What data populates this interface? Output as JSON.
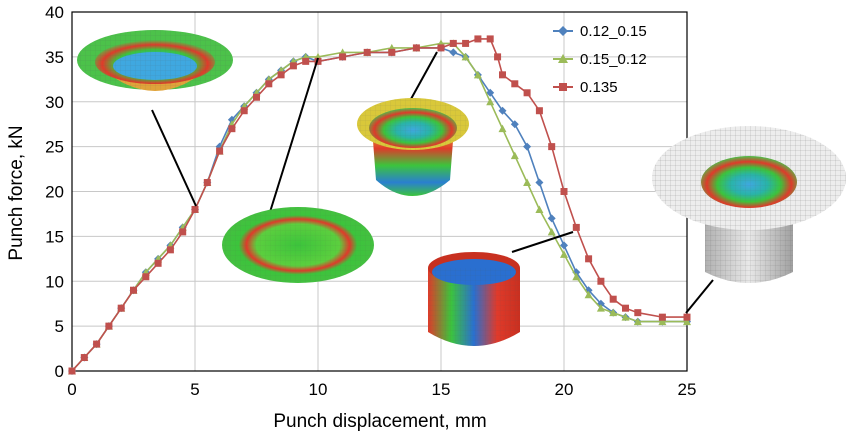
{
  "chart_data": {
    "type": "line",
    "title": "",
    "xlabel": "Punch displacement, mm",
    "ylabel": "Punch force, kN",
    "xlim": [
      0,
      25
    ],
    "ylim": [
      0,
      40
    ],
    "x_ticks": [
      "0",
      "5",
      "10",
      "15",
      "20",
      "25"
    ],
    "y_ticks": [
      "0",
      "5",
      "10",
      "15",
      "20",
      "25",
      "30",
      "35",
      "40"
    ],
    "grid": true,
    "legend_position": "top-right",
    "series": [
      {
        "name": "0.12_0.15",
        "color": "#4f81bd",
        "marker": "diamond",
        "x": [
          0,
          0.5,
          1,
          1.5,
          2,
          2.5,
          3,
          3.5,
          4,
          4.5,
          5,
          5.5,
          6,
          6.5,
          7,
          7.5,
          8,
          8.5,
          9,
          9.5,
          10,
          11,
          12,
          13,
          14,
          15,
          15.5,
          16,
          16.5,
          17,
          17.5,
          18,
          18.5,
          19,
          19.5,
          20,
          20.5,
          21,
          21.5,
          22,
          22.5,
          23,
          24,
          25
        ],
        "y": [
          0,
          1.5,
          3,
          5,
          7,
          9,
          11,
          12.5,
          14,
          16,
          18,
          21,
          25,
          28,
          29.5,
          31,
          32.5,
          33.5,
          34.5,
          35,
          34.5,
          35,
          35.5,
          35.5,
          36,
          36,
          35.5,
          35,
          33,
          31,
          29,
          27.5,
          25,
          21,
          17,
          14,
          11,
          9,
          7.5,
          6.5,
          6,
          5.5,
          5.5,
          5.5
        ]
      },
      {
        "name": "0.15_0.12",
        "color": "#9bbb59",
        "marker": "triangle",
        "x": [
          0,
          0.5,
          1,
          1.5,
          2,
          2.5,
          3,
          3.5,
          4,
          4.5,
          5,
          5.5,
          6,
          6.5,
          7,
          7.5,
          8,
          8.5,
          9,
          9.5,
          10,
          11,
          12,
          13,
          14,
          15,
          15.5,
          16,
          16.5,
          17,
          17.5,
          18,
          18.5,
          19,
          19.5,
          20,
          20.5,
          21,
          21.5,
          22,
          22.5,
          23,
          24,
          25
        ],
        "y": [
          0,
          1.5,
          3,
          5,
          7,
          9,
          11,
          12.5,
          14,
          16,
          18,
          21,
          24.5,
          27.5,
          29.5,
          31,
          32.5,
          33.5,
          34.5,
          35,
          35,
          35.5,
          35.5,
          36,
          36,
          36.5,
          36.5,
          35,
          33,
          30,
          27,
          24,
          21,
          18,
          15.5,
          13,
          10.5,
          8.5,
          7,
          6.5,
          6,
          5.5,
          5.5,
          5.5
        ]
      },
      {
        "name": "0.135",
        "color": "#c0504d",
        "marker": "square",
        "x": [
          0,
          0.5,
          1,
          1.5,
          2,
          2.5,
          3,
          3.5,
          4,
          4.5,
          5,
          5.5,
          6,
          6.5,
          7,
          7.5,
          8,
          8.5,
          9,
          9.5,
          10,
          11,
          12,
          13,
          14,
          15,
          15.5,
          16,
          16.5,
          17,
          17.3,
          17.5,
          18,
          18.5,
          19,
          19.5,
          20,
          20.5,
          21,
          21.5,
          22,
          22.5,
          23,
          24,
          25
        ],
        "y": [
          0,
          1.5,
          3,
          5,
          7,
          9,
          10.5,
          12,
          13.5,
          15.5,
          18,
          21,
          24.5,
          27,
          29,
          30.5,
          32,
          33,
          34,
          34.5,
          34.5,
          35,
          35.5,
          35.5,
          36,
          36,
          36.5,
          36.5,
          37,
          37,
          35,
          33,
          32,
          31,
          29,
          25,
          20,
          16,
          12.5,
          10,
          8,
          7,
          6.5,
          6,
          6
        ]
      }
    ]
  }
}
